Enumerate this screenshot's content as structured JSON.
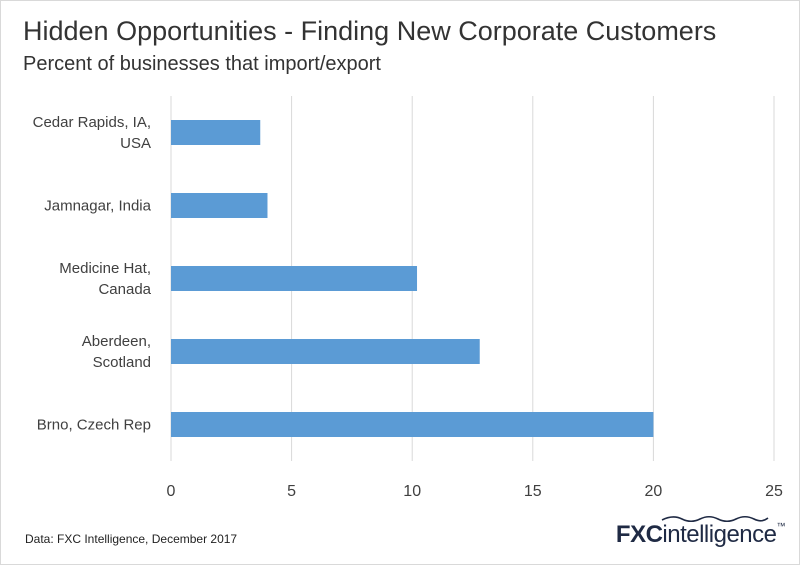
{
  "title": "Hidden Opportunities - Finding New Corporate Customers",
  "subtitle": "Percent of businesses that import/export",
  "footer": {
    "source": "Data: FXC Intelligence, December 2017",
    "logo_text": "FXCintelligence"
  },
  "colors": {
    "bar": "#5b9bd5",
    "gridline": "#d9d9d9",
    "text": "#404040"
  },
  "chart_data": {
    "type": "bar",
    "orientation": "horizontal",
    "title": "Hidden Opportunities - Finding New Corporate Customers",
    "subtitle": "Percent of businesses that import/export",
    "categories": [
      [
        "Cedar Rapids, IA,",
        "USA"
      ],
      [
        "Jamnagar, India"
      ],
      [
        "Medicine Hat,",
        "Canada"
      ],
      [
        "Aberdeen,",
        "Scotland"
      ],
      [
        "Brno, Czech Rep"
      ]
    ],
    "values": [
      3.7,
      4.0,
      10.2,
      12.8,
      20.0
    ],
    "xlim": [
      0,
      25
    ],
    "xticks": [
      "0",
      "5",
      "10",
      "15",
      "20",
      "25"
    ],
    "grid": true,
    "legend": "none"
  }
}
